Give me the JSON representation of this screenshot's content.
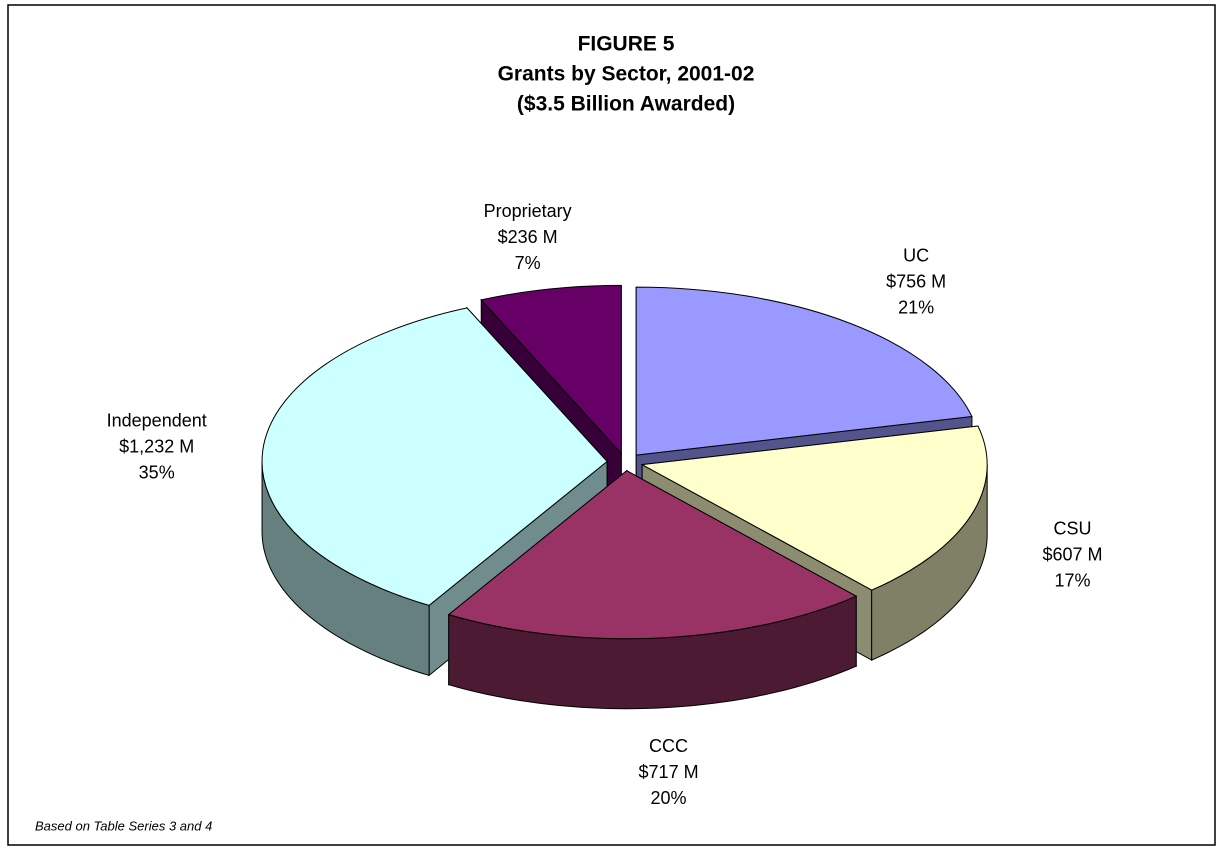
{
  "chart_data": {
    "type": "pie3d",
    "title": [
      "FIGURE 5",
      "Grants by Sector, 2001-02",
      "($3.5 Billion Awarded)"
    ],
    "categories": [
      "UC",
      "CSU",
      "CCC",
      "Independent",
      "Proprietary"
    ],
    "values": [
      756,
      607,
      717,
      1232,
      236
    ],
    "value_labels": [
      "$756 M",
      "$607 M",
      "$717 M",
      "$1,232 M",
      "$236 M"
    ],
    "percents": [
      21,
      17,
      20,
      35,
      7
    ],
    "percent_labels": [
      "21%",
      "17%",
      "20%",
      "35%",
      "7%"
    ],
    "colors": [
      "#9999ff",
      "#ffffcc",
      "#993366",
      "#ccffff",
      "#660066"
    ],
    "footnote": "Based on Table Series 3 and 4"
  }
}
